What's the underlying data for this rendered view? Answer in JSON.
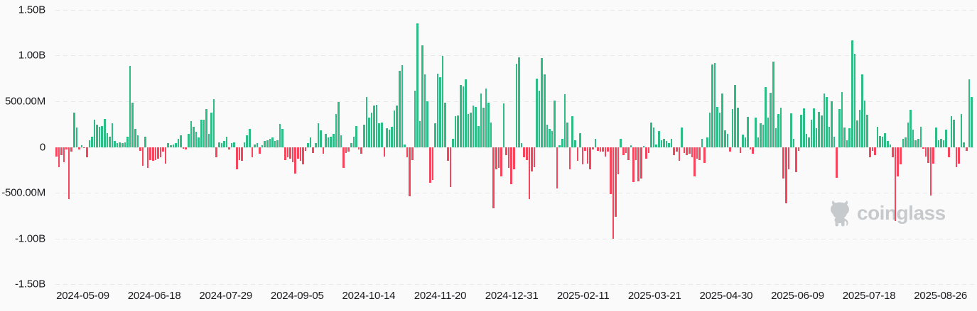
{
  "watermark": {
    "text": "coinglass",
    "icon": "coinglass-bull-logo"
  },
  "chart_data": {
    "type": "bar",
    "title": "",
    "grid": "horizontal-dashed",
    "legend": "none",
    "y_tick_labels": [
      "1.50B",
      "1.00B",
      "500.00M",
      "0",
      "-500.00M",
      "-1.00B",
      "-1.50B"
    ],
    "ylim_millions": [
      -1500,
      1500
    ],
    "x_tick_labels": [
      "2024-05-09",
      "2024-06-18",
      "2024-07-29",
      "2024-09-05",
      "2024-10-14",
      "2024-11-20",
      "2024-12-31",
      "2025-02-11",
      "2025-03-21",
      "2025-04-30",
      "2025-06-09",
      "2025-07-18",
      "2025-08-26"
    ],
    "x_axis_layout": {
      "first_tick_pct": 3.12,
      "tick_step_pct": 7.744
    },
    "colors": {
      "positive": "#2ebd85",
      "negative": "#f6465d",
      "grid": "#e8e8e8",
      "text": "#1b1b1f",
      "background": "#fafafa",
      "watermark": "#c7cacd"
    },
    "values_unit": "millions",
    "values_millions": [
      -103,
      -219,
      -90,
      -168,
      -31,
      -567,
      -52,
      374,
      214,
      -26,
      21,
      -13,
      -116,
      77,
      116,
      296,
      245,
      219,
      227,
      309,
      155,
      116,
      258,
      64,
      39,
      52,
      39,
      52,
      116,
      884,
      484,
      201,
      129,
      -39,
      -206,
      116,
      -232,
      -142,
      -155,
      -142,
      -129,
      -116,
      -52,
      -180,
      39,
      21,
      26,
      39,
      90,
      129,
      -21,
      -26,
      142,
      283,
      219,
      167,
      103,
      301,
      296,
      417,
      142,
      374,
      523,
      -116,
      52,
      39,
      64,
      116,
      -26,
      39,
      52,
      -245,
      -142,
      -155,
      52,
      129,
      198,
      -116,
      26,
      39,
      -77,
      21,
      64,
      77,
      90,
      103,
      64,
      77,
      250,
      198,
      -142,
      -116,
      -129,
      -168,
      -291,
      -129,
      -155,
      -193,
      -39,
      39,
      103,
      -64,
      39,
      258,
      186,
      -77,
      142,
      103,
      116,
      142,
      361,
      495,
      129,
      -232,
      -64,
      -52,
      39,
      116,
      227,
      -26,
      -77,
      245,
      549,
      322,
      379,
      451,
      464,
      258,
      271,
      -103,
      206,
      193,
      219,
      400,
      456,
      830,
      894,
      26,
      -116,
      -541,
      -142,
      618,
      1353,
      283,
      1116,
      791,
      497,
      -394,
      -361,
      258,
      804,
      765,
      997,
      482,
      -155,
      -438,
      90,
      335,
      348,
      675,
      662,
      740,
      361,
      374,
      451,
      438,
      232,
      585,
      430,
      637,
      482,
      271,
      -670,
      -245,
      -232,
      -322,
      477,
      -90,
      -232,
      -405,
      -245,
      910,
      979,
      39,
      -116,
      -142,
      -567,
      -271,
      -219,
      747,
      618,
      971,
      791,
      245,
      198,
      173,
      508,
      -451,
      21,
      90,
      580,
      271,
      -245,
      335,
      77,
      -155,
      155,
      -193,
      -39,
      -180,
      -245,
      -26,
      90,
      -39,
      -52,
      -52,
      -103,
      -52,
      -515,
      -1005,
      -760,
      -296,
      90,
      -90,
      -64,
      -142,
      21,
      -387,
      -142,
      -374,
      -348,
      13,
      -129,
      -64,
      271,
      211,
      26,
      173,
      77,
      90,
      64,
      39,
      90,
      -90,
      -52,
      -155,
      211,
      -64,
      -90,
      -77,
      -116,
      -322,
      -129,
      -142,
      90,
      -173,
      103,
      374,
      907,
      915,
      438,
      374,
      585,
      180,
      142,
      -52,
      412,
      675,
      430,
      -64,
      134,
      103,
      327,
      -26,
      -77,
      322,
      103,
      258,
      245,
      657,
      322,
      593,
      933,
      206,
      361,
      430,
      -348,
      -618,
      -245,
      369,
      90,
      -276,
      -39,
      353,
      425,
      147,
      103,
      296,
      420,
      206,
      387,
      343,
      588,
      549,
      219,
      497,
      116,
      -335,
      412,
      600,
      214,
      77,
      206,
      1167,
      1018,
      291,
      405,
      791,
      508,
      353,
      -116,
      -39,
      -90,
      224,
      121,
      111,
      155,
      64,
      26,
      -116,
      -812,
      -322,
      -193,
      90,
      103,
      271,
      405,
      188,
      77,
      90,
      224,
      -21,
      -103,
      -173,
      -533,
      -180,
      214,
      77,
      90,
      72,
      193,
      -116,
      335,
      301,
      -219,
      -180,
      361,
      52,
      -39,
      740,
      549
    ]
  }
}
